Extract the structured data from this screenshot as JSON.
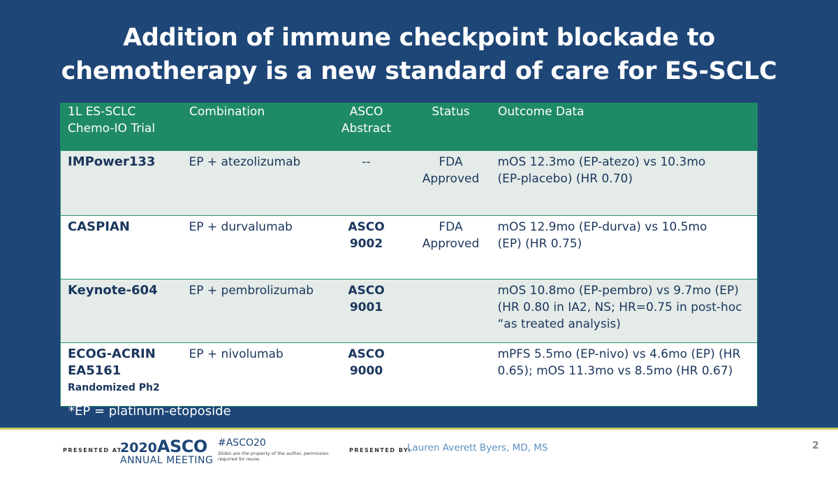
{
  "title": {
    "line1": "Addition of immune checkpoint blockade to",
    "line2": "chemotherapy is a new standard of care for ES-SCLC"
  },
  "table": {
    "headers": {
      "trial_line1": "1L ES-SCLC",
      "trial_line2": "Chemo-IO Trial",
      "combination": "Combination",
      "abstract_line1": "ASCO",
      "abstract_line2": "Abstract",
      "status": "Status",
      "outcome": "Outcome Data"
    },
    "rows": [
      {
        "trial": "IMPower133",
        "trial_sub": "",
        "combination": "EP + atezolizumab",
        "abstract_line1": "--",
        "abstract_line2": "",
        "status_line1": "FDA",
        "status_line2": "Approved",
        "outcome_line1": "mOS 12.3mo (EP-atezo) vs 10.3mo",
        "outcome_line2": "(EP-placebo) (HR 0.70)",
        "outcome_line3": ""
      },
      {
        "trial": "CASPIAN",
        "trial_sub": "",
        "combination": "EP + durvalumab",
        "abstract_line1": "ASCO",
        "abstract_line2": "9002",
        "status_line1": "FDA",
        "status_line2": "Approved",
        "outcome_line1": "mOS 12.9mo (EP-durva) vs 10.5mo",
        "outcome_line2": "(EP) (HR 0.75)",
        "outcome_line3": ""
      },
      {
        "trial": "Keynote-604",
        "trial_sub": "",
        "combination": "EP + pembrolizumab",
        "abstract_line1": "ASCO",
        "abstract_line2": "9001",
        "status_line1": "",
        "status_line2": "",
        "outcome_line1": "mOS 10.8mo (EP-pembro) vs 9.7mo (EP)",
        "outcome_line2": "(HR 0.80 in IA2, NS; HR=0.75 in post-hoc",
        "outcome_line3": "“as treated analysis)"
      },
      {
        "trial": "ECOG-ACRIN EA5161",
        "trial_sub": "Randomized Ph2",
        "combination": "EP + nivolumab",
        "abstract_line1": "ASCO",
        "abstract_line2": "9000",
        "status_line1": "",
        "status_line2": "",
        "outcome_line1": "mPFS 5.5mo (EP-nivo) vs 4.6mo (EP) (HR",
        "outcome_line2": "0.65); mOS 11.3mo vs 8.5mo (HR 0.67)",
        "outcome_line3": ""
      }
    ]
  },
  "footnote": "*EP = platinum-etoposide",
  "footer": {
    "presented_at": "PRESENTED AT:",
    "logo_year": "2020",
    "logo_asco": "ASCO",
    "logo_sub": "ANNUAL MEETING",
    "hashtag": "#ASCO20",
    "disclaimer": "Slides are the property of the author, permission required for reuse.",
    "presented_by": "PRESENTED BY:",
    "presenter": "Lauren Averett Byers, MD, MS",
    "page_number": "2"
  },
  "colors": {
    "background": "#1e4677",
    "header_green": "#1f8a66",
    "row_tint": "#e4ebe8",
    "status_red": "#e02020",
    "accent_line": "#c7cf5d"
  }
}
